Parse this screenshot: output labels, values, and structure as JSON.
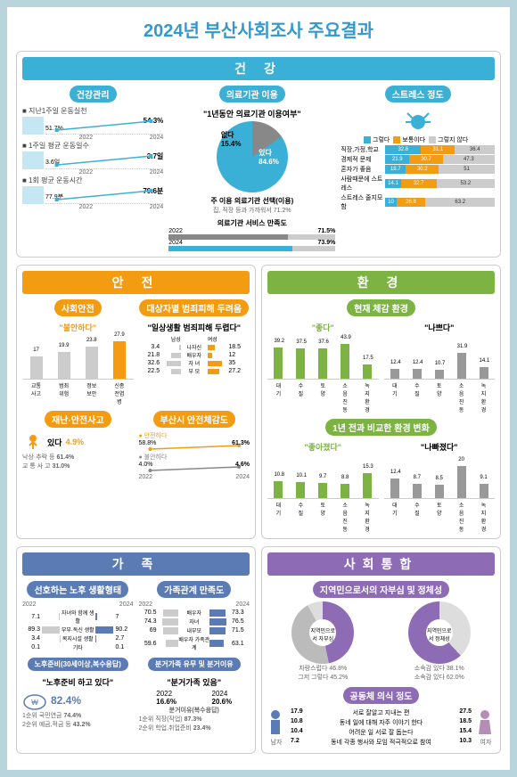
{
  "title": "2024년 부산사회조사 주요결과",
  "health": {
    "header": "건 강",
    "mgmt": {
      "label": "건강관리",
      "items": [
        {
          "name": "지난1주일 운동실천",
          "y2022": "51.7%",
          "y2024": "54.3%"
        },
        {
          "name": "1주일 평균 운동일수",
          "y2022": "3.6일",
          "y2024": "3.7일"
        },
        {
          "name": "1회 평균 운동시간",
          "y2022": "77.9분",
          "y2024": "79.6분"
        }
      ],
      "yr1": "2022",
      "yr2": "2024"
    },
    "medical": {
      "label": "의료기관 이용",
      "quote": "\"1년동안 의료기관 이용여부\"",
      "pie": {
        "yes": "있다",
        "yes_v": "84.6%",
        "no": "없다",
        "no_v": "15.4%",
        "yes_color": "#3bb0d6",
        "no_color": "#888"
      },
      "choice_label": "주 이용 의료기관 선택(이용)",
      "choice_txt": "집, 직장 등과 가까워서 71.2%",
      "satisfaction": "의료기관 서비스 만족도",
      "s2022": "71.5%",
      "s2024": "73.9%"
    },
    "stress": {
      "label": "스트레스 정도",
      "legend": [
        {
          "l": "그렇다",
          "c": "#3bb0d6"
        },
        {
          "l": "보통이다",
          "c": "#f39c12"
        },
        {
          "l": "그렇지 않다",
          "c": "#ccc"
        }
      ],
      "rows": [
        {
          "l": "직장,가정,학교",
          "a": 32.6,
          "b": 31.1,
          "c": 36.4
        },
        {
          "l": "경제적 문제",
          "a": 21.9,
          "b": 30.7,
          "c": 47.3
        },
        {
          "l": "혼자가 좋음",
          "a": 18.7,
          "b": 30.2,
          "c": 51.0
        },
        {
          "l": "사람때문에 스트레스",
          "a": 14.1,
          "b": 32.7,
          "c": 53.2
        },
        {
          "l": "스트레스 줄지모함",
          "a": 10.0,
          "b": 26.8,
          "c": 63.2
        }
      ]
    }
  },
  "safety": {
    "header": "안 전",
    "social": {
      "label": "사회안전",
      "quote": "\"불안하다\"",
      "unit": "(%)",
      "bars": [
        {
          "l": "교통사고",
          "v": 17.0
        },
        {
          "l": "범죄위험",
          "v": 19.9
        },
        {
          "l": "정보보안",
          "v": 23.8
        },
        {
          "l": "신종전염병",
          "v": 27.9
        }
      ],
      "color": "#f39c12"
    },
    "crime": {
      "label": "대상자별 범죄피해 두려움",
      "quote": "\"일상생활 범죄피해 두렵다\"",
      "unit": "(%)",
      "cols": [
        "남성",
        "여성"
      ],
      "rows": [
        {
          "l": "나자신",
          "m": 3.4,
          "f": 18.5
        },
        {
          "l": "배우자",
          "m": 21.8,
          "f": 12.0
        },
        {
          "l": "자 녀",
          "m": 32.6,
          "f": 35.0
        },
        {
          "l": "부 모",
          "m": 22.5,
          "f": 27.2
        }
      ]
    },
    "disaster": {
      "label": "재난·안전사고",
      "main": "있다",
      "main_v": "4.9%",
      "sub1": "낙상·추락 등",
      "sub1_v": "61.4%",
      "sub2": "교 통 사 고",
      "sub2_v": "31.0%"
    },
    "feel": {
      "label": "부산시 안전체감도",
      "rows": [
        {
          "l": "안전하다",
          "y22": "58.8%",
          "y24": "61.3%",
          "c": "#f39c12"
        },
        {
          "l": "불안하다",
          "y22": "4.0%",
          "y24": "4.6%",
          "c": "#888"
        }
      ]
    }
  },
  "env": {
    "header": "환 경",
    "current": {
      "label": "현재 체감 환경",
      "good": "\"좋다\"",
      "bad": "\"나쁘다\"",
      "unit": "(%)",
      "cats": [
        "대기",
        "수질",
        "토양",
        "소음진동",
        "녹지환경"
      ],
      "good_v": [
        39.2,
        37.5,
        37.6,
        43.9,
        17.5
      ],
      "good_c": "#7cb342",
      "bad_v": [
        12.4,
        12.4,
        10.7,
        31.9,
        14.1
      ],
      "bad_c": "#999"
    },
    "change": {
      "label": "1년 전과 비교한 환경 변화",
      "good": "\"좋아졌다\"",
      "bad": "\"나빠졌다\"",
      "cats": [
        "대기",
        "수질",
        "토양",
        "소음진동",
        "녹지환경"
      ],
      "good_v": [
        10.8,
        10.1,
        9.7,
        8.8,
        15.3
      ],
      "good_c": "#7cb342",
      "bad_v": [
        12.4,
        8.7,
        8.5,
        20.0,
        9.1
      ],
      "bad_c": "#999"
    }
  },
  "family": {
    "header": "가 족",
    "prefer": {
      "label": "선호하는 노후 생활형태",
      "unit": "(%)",
      "rows": [
        {
          "l": "자녀와 함께 생활",
          "y22": 7.1,
          "y24": 7.0
        },
        {
          "l": "부부·독신 생활",
          "y22": 89.3,
          "y24": 90.2
        },
        {
          "l": "복지시설 생활",
          "y22": 3.4,
          "y24": 2.7
        },
        {
          "l": "기타",
          "y22": 0.1,
          "y24": 0.1
        }
      ]
    },
    "satisfaction": {
      "label": "가족관계 만족도",
      "unit": "(%)",
      "rows": [
        {
          "l": "배우자",
          "y22": 70.5,
          "y24": 73.3
        },
        {
          "l": "자녀",
          "y22": 74.3,
          "y24": 76.5
        },
        {
          "l": "내부모",
          "y22": 69.0,
          "y24": 71.5
        },
        {
          "l": "배우자 가족관계",
          "y22": 59.6,
          "y24": 63.1
        }
      ]
    },
    "prep": {
      "label": "노후준비(30세이상,복수응답)",
      "quote": "\"노후준비 하고 있다\"",
      "v": "82.4%",
      "r1": "1순위 국민연금",
      "r1v": "74.4%",
      "r2": "2순위 예금,적금 등",
      "r2v": "43.2%"
    },
    "separate": {
      "label": "분거가족 유무 및 분거이유",
      "quote": "\"분거가족 있음\"",
      "y22": "16.6%",
      "y24": "20.6%",
      "reason": "분거이유(복수응답)",
      "r1": "1순위 직장(작업)",
      "r1v": "87.3%",
      "r2": "2순위 학업,취업준비",
      "r2v": "23.4%"
    }
  },
  "social": {
    "header": "사회통합",
    "pride": {
      "label": "지역민으로서의 자부심 및 정체성",
      "left_title": "지역민으로서 자부심",
      "right_title": "지역민으로서 정체성",
      "left": [
        {
          "l": "자랑스럽다",
          "v": "46.8%",
          "c": "#8e6bb5"
        },
        {
          "l": "그저 그렇다",
          "v": "45.2%",
          "c": "#bbb"
        },
        {
          "l": "자랑스럽지 않다",
          "v": "8.1%",
          "c": "#ddd"
        }
      ],
      "right": [
        {
          "l": "소속감 있다",
          "v": "38.1%",
          "c": "#ddd"
        },
        {
          "l": "소속감 있다",
          "v": "62.0%",
          "c": "#8e6bb5"
        }
      ]
    },
    "community": {
      "label": "공동체 의식 정도",
      "m": "남자",
      "f": "여자",
      "rows": [
        {
          "m": 17.9,
          "l": "서로 잘알고 지내는 편",
          "f": 27.5
        },
        {
          "m": 10.8,
          "l": "동네 일에 대해 자주 이야기 한다",
          "f": 18.5
        },
        {
          "m": 10.4,
          "l": "어려운 일 서로 잘 돕는다",
          "f": 15.4
        },
        {
          "m": 7.2,
          "l": "동네 각종 행사와 모임 적극적으로 참여",
          "f": 10.3
        }
      ]
    }
  }
}
